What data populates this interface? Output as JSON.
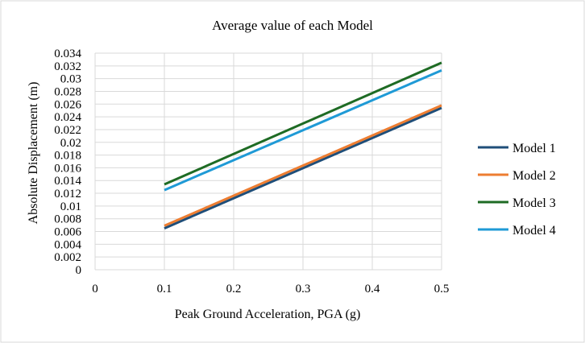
{
  "chart_data": {
    "type": "line",
    "title": "Average value of each Model",
    "xlabel": "Peak Ground Acceleration, PGA (g)",
    "ylabel": "Absolute Displacement (m)",
    "xlim": [
      0,
      0.5
    ],
    "ylim": [
      0,
      0.034
    ],
    "x_ticks": [
      "0",
      "0.1",
      "0.2",
      "0.3",
      "0.4",
      "0.5"
    ],
    "y_ticks": [
      "0",
      "0.002",
      "0.004",
      "0.006",
      "0.008",
      "0.01",
      "0.012",
      "0.014",
      "0.016",
      "0.018",
      "0.02",
      "0.022",
      "0.024",
      "0.026",
      "0.028",
      "0.03",
      "0.032",
      "0.034"
    ],
    "grid": true,
    "legend_position": "right",
    "x": [
      0.1,
      0.5
    ],
    "series": [
      {
        "name": "Model 1",
        "color": "#1f4e79",
        "values": [
          0.0065,
          0.0254
        ]
      },
      {
        "name": "Model 2",
        "color": "#ed7d31",
        "values": [
          0.0069,
          0.0258
        ]
      },
      {
        "name": "Model 3",
        "color": "#1e6b24",
        "values": [
          0.0134,
          0.0325
        ]
      },
      {
        "name": "Model 4",
        "color": "#1f9ad6",
        "values": [
          0.0125,
          0.0313
        ]
      }
    ]
  }
}
